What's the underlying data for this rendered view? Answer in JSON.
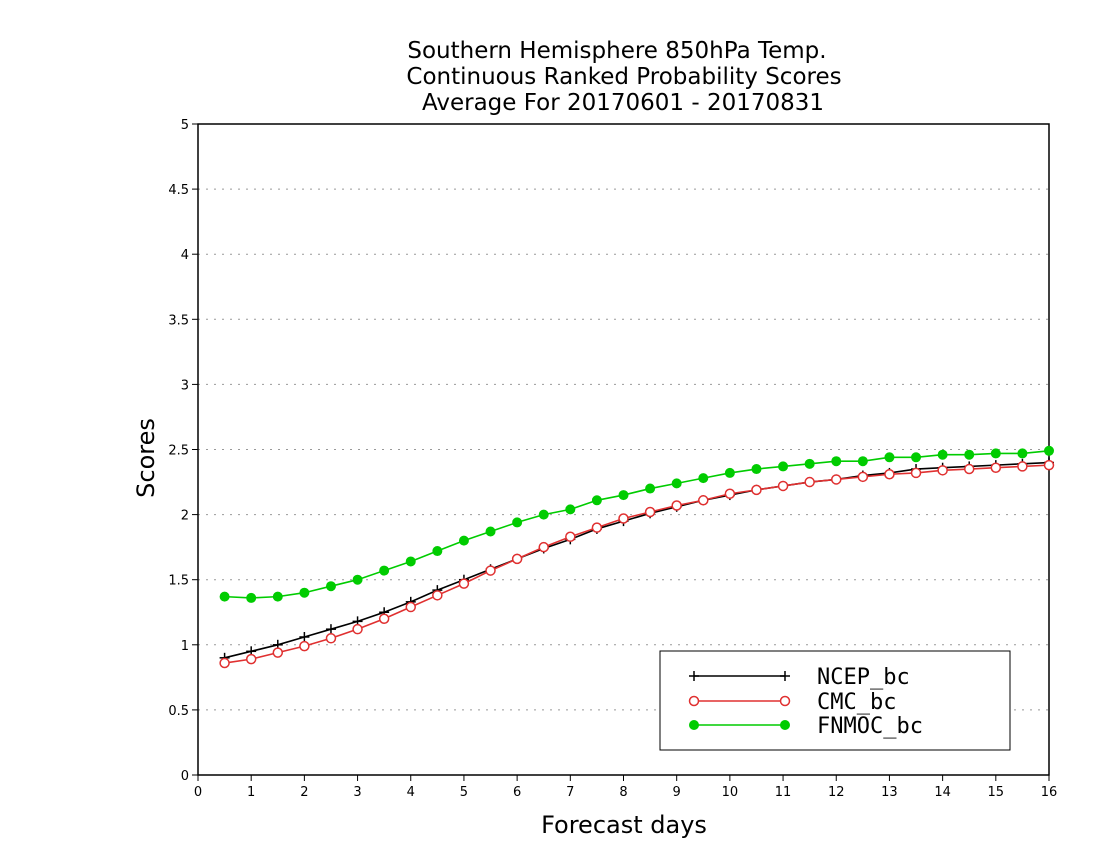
{
  "chart_data": {
    "type": "line",
    "title": "Southern Hemisphere 850hPa Temp.",
    "subtitle": "Continuous Ranked Probability Scores",
    "subtitle2": "Average For 20170601 - 20170831",
    "xlabel": "Forecast days",
    "ylabel": "Scores",
    "xlim": [
      0,
      16
    ],
    "ylim": [
      0,
      5
    ],
    "x_ticks": [
      "0",
      "1",
      "2",
      "3",
      "4",
      "5",
      "6",
      "7",
      "8",
      "9",
      "10",
      "11",
      "12",
      "13",
      "14",
      "15",
      "16"
    ],
    "y_ticks": [
      "0",
      "0.5",
      "1",
      "1.5",
      "2",
      "2.5",
      "3",
      "3.5",
      "4",
      "4.5",
      "5"
    ],
    "grid": true,
    "legend_position": "bottom-right",
    "x": [
      0.5,
      1,
      1.5,
      2,
      2.5,
      3,
      3.5,
      4,
      4.5,
      5,
      5.5,
      6,
      6.5,
      7,
      7.5,
      8,
      8.5,
      9,
      9.5,
      10,
      10.5,
      11,
      11.5,
      12,
      12.5,
      13,
      13.5,
      14,
      14.5,
      15,
      15.5,
      16
    ],
    "series": [
      {
        "name": "NCEP_bc",
        "color": "#000000",
        "marker": "plus",
        "values": [
          0.9,
          0.95,
          1.0,
          1.06,
          1.12,
          1.18,
          1.25,
          1.33,
          1.42,
          1.5,
          1.58,
          1.66,
          1.74,
          1.81,
          1.89,
          1.95,
          2.01,
          2.06,
          2.11,
          2.15,
          2.19,
          2.22,
          2.25,
          2.27,
          2.3,
          2.32,
          2.35,
          2.36,
          2.37,
          2.38,
          2.39,
          2.4
        ]
      },
      {
        "name": "CMC_bc",
        "color": "#e03030",
        "marker": "open-circle",
        "values": [
          0.86,
          0.89,
          0.94,
          0.99,
          1.05,
          1.12,
          1.2,
          1.29,
          1.38,
          1.47,
          1.57,
          1.66,
          1.75,
          1.83,
          1.9,
          1.97,
          2.02,
          2.07,
          2.11,
          2.16,
          2.19,
          2.22,
          2.25,
          2.27,
          2.29,
          2.31,
          2.32,
          2.34,
          2.35,
          2.36,
          2.37,
          2.38
        ]
      },
      {
        "name": "FNMOC_bc",
        "color": "#00cc00",
        "marker": "filled-circle",
        "values": [
          1.37,
          1.36,
          1.37,
          1.4,
          1.45,
          1.5,
          1.57,
          1.64,
          1.72,
          1.8,
          1.87,
          1.94,
          2.0,
          2.04,
          2.11,
          2.15,
          2.2,
          2.24,
          2.28,
          2.32,
          2.35,
          2.37,
          2.39,
          2.41,
          2.41,
          2.44,
          2.44,
          2.46,
          2.46,
          2.47,
          2.47,
          2.49
        ]
      }
    ]
  }
}
